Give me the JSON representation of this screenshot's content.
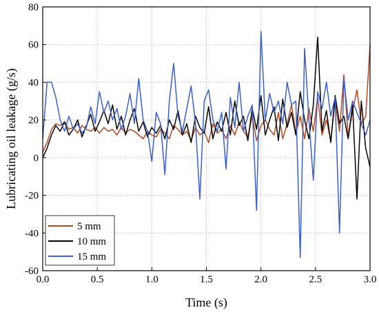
{
  "chart_data": {
    "type": "line",
    "title": "",
    "xlabel": "Time (s)",
    "ylabel": "Lubricating oil leakage (g/s)",
    "xlim": [
      0.0,
      3.0
    ],
    "ylim": [
      -60,
      80
    ],
    "xticks": [
      "0.0",
      "0.5",
      "1.0",
      "1.5",
      "2.0",
      "2.5",
      "3.0"
    ],
    "yticks": [
      "-60",
      "-40",
      "-20",
      "0",
      "20",
      "40",
      "60",
      "80"
    ],
    "grid": true,
    "legend": "bottom-left",
    "series": [
      {
        "name": "5 mm",
        "color": "#b5461e",
        "x": [
          0.0,
          0.04,
          0.08,
          0.12,
          0.16,
          0.2,
          0.24,
          0.28,
          0.32,
          0.36,
          0.4,
          0.44,
          0.48,
          0.52,
          0.56,
          0.6,
          0.64,
          0.68,
          0.72,
          0.76,
          0.8,
          0.84,
          0.88,
          0.92,
          0.96,
          1.0,
          1.04,
          1.08,
          1.12,
          1.16,
          1.2,
          1.24,
          1.28,
          1.32,
          1.36,
          1.4,
          1.44,
          1.48,
          1.52,
          1.56,
          1.6,
          1.64,
          1.68,
          1.72,
          1.76,
          1.8,
          1.84,
          1.88,
          1.92,
          1.96,
          2.0,
          2.04,
          2.08,
          2.12,
          2.16,
          2.2,
          2.24,
          2.28,
          2.32,
          2.36,
          2.4,
          2.44,
          2.48,
          2.52,
          2.56,
          2.6,
          2.64,
          2.68,
          2.72,
          2.76,
          2.8,
          2.84,
          2.88,
          2.92,
          2.96,
          3.0
        ],
        "values": [
          3,
          8,
          15,
          18,
          17,
          19,
          15,
          16,
          13,
          17,
          15,
          14,
          16,
          13,
          16,
          14,
          15,
          12,
          16,
          13,
          15,
          14,
          12,
          10,
          14,
          12,
          11,
          15,
          13,
          10,
          17,
          15,
          12,
          14,
          9,
          16,
          12,
          14,
          8,
          18,
          13,
          15,
          10,
          17,
          12,
          19,
          14,
          11,
          22,
          9,
          17,
          20,
          15,
          12,
          24,
          10,
          18,
          28,
          13,
          22,
          10,
          26,
          14,
          32,
          12,
          20,
          9,
          30,
          14,
          44,
          11,
          25,
          36,
          18,
          22,
          60
        ]
      },
      {
        "name": "10 mm",
        "color": "#000000",
        "x": [
          0.0,
          0.04,
          0.08,
          0.12,
          0.16,
          0.2,
          0.24,
          0.28,
          0.32,
          0.36,
          0.4,
          0.44,
          0.48,
          0.52,
          0.56,
          0.6,
          0.64,
          0.68,
          0.72,
          0.76,
          0.8,
          0.84,
          0.88,
          0.92,
          0.96,
          1.0,
          1.04,
          1.08,
          1.12,
          1.16,
          1.2,
          1.24,
          1.28,
          1.32,
          1.36,
          1.4,
          1.44,
          1.48,
          1.52,
          1.56,
          1.6,
          1.64,
          1.68,
          1.72,
          1.76,
          1.8,
          1.84,
          1.88,
          1.92,
          1.96,
          2.0,
          2.04,
          2.08,
          2.12,
          2.16,
          2.2,
          2.24,
          2.28,
          2.32,
          2.36,
          2.4,
          2.44,
          2.48,
          2.52,
          2.56,
          2.6,
          2.64,
          2.68,
          2.72,
          2.76,
          2.8,
          2.84,
          2.88,
          2.92,
          2.96,
          3.0
        ],
        "values": [
          0,
          5,
          12,
          17,
          14,
          19,
          12,
          15,
          20,
          11,
          17,
          23,
          14,
          19,
          25,
          18,
          28,
          15,
          22,
          12,
          20,
          26,
          14,
          19,
          11,
          16,
          13,
          17,
          10,
          20,
          15,
          25,
          12,
          18,
          8,
          22,
          16,
          13,
          27,
          10,
          19,
          14,
          24,
          12,
          30,
          17,
          22,
          9,
          26,
          15,
          33,
          12,
          20,
          27,
          9,
          31,
          16,
          24,
          12,
          35,
          20,
          10,
          28,
          64,
          14,
          25,
          8,
          33,
          18,
          22,
          10,
          28,
          -22,
          30,
          5,
          -5
        ]
      },
      {
        "name": "15 mm",
        "color": "#3a5fc8",
        "x": [
          0.0,
          0.04,
          0.08,
          0.12,
          0.16,
          0.2,
          0.24,
          0.28,
          0.32,
          0.36,
          0.4,
          0.44,
          0.48,
          0.52,
          0.56,
          0.6,
          0.64,
          0.68,
          0.72,
          0.76,
          0.8,
          0.84,
          0.88,
          0.92,
          0.96,
          1.0,
          1.04,
          1.08,
          1.12,
          1.16,
          1.2,
          1.24,
          1.28,
          1.32,
          1.36,
          1.4,
          1.44,
          1.48,
          1.52,
          1.56,
          1.6,
          1.64,
          1.68,
          1.72,
          1.76,
          1.8,
          1.84,
          1.88,
          1.92,
          1.96,
          2.0,
          2.04,
          2.08,
          2.12,
          2.16,
          2.2,
          2.24,
          2.28,
          2.32,
          2.36,
          2.4,
          2.44,
          2.48,
          2.52,
          2.56,
          2.6,
          2.64,
          2.68,
          2.72,
          2.76,
          2.8,
          2.84,
          2.88,
          2.92,
          2.96,
          3.0
        ],
        "values": [
          10,
          40,
          40,
          32,
          20,
          14,
          22,
          15,
          18,
          13,
          16,
          27,
          18,
          35,
          24,
          30,
          20,
          26,
          15,
          22,
          34,
          18,
          42,
          20,
          14,
          -2,
          24,
          18,
          -9,
          30,
          50,
          22,
          14,
          26,
          38,
          18,
          -22,
          30,
          36,
          20,
          14,
          24,
          -6,
          32,
          16,
          40,
          14,
          22,
          28,
          -28,
          67,
          20,
          34,
          24,
          30,
          18,
          40,
          28,
          30,
          -53,
          58,
          20,
          -12,
          35,
          26,
          40,
          22,
          32,
          -40,
          42,
          20,
          30,
          24,
          18,
          12,
          20
        ]
      }
    ]
  }
}
